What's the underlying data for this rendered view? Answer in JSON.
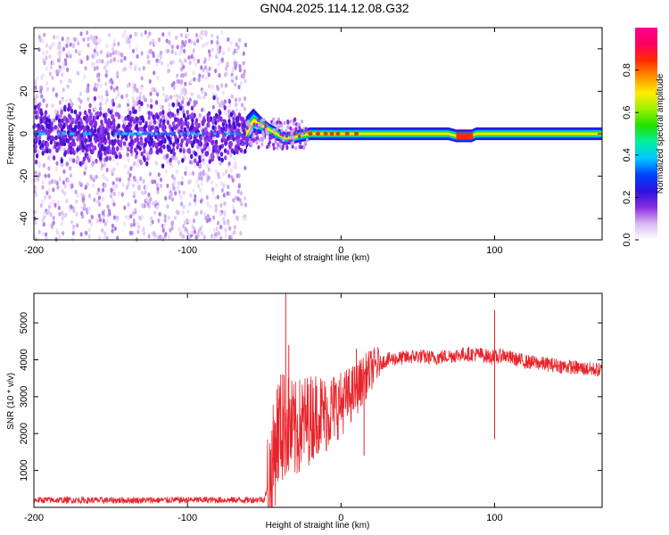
{
  "title": "GN04.2025.114.12.08.G32",
  "chart_data": [
    {
      "type": "heatmap",
      "xlabel": "Height of straight line (km)",
      "ylabel": "Frequency (Hz)",
      "xlim": [
        -200,
        170
      ],
      "ylim": [
        -50,
        50
      ],
      "x_ticks": [
        -200,
        -100,
        0,
        100
      ],
      "y_ticks": [
        -40,
        -20,
        0,
        20,
        40
      ],
      "noise_region": {
        "x_from": -200,
        "x_to": -62,
        "y_from": -50,
        "y_to": 48
      },
      "core_band": {
        "x": [
          -62,
          -57,
          -52,
          -47,
          -42,
          -37,
          -32,
          -27,
          -20,
          0,
          20,
          40,
          60,
          70,
          75,
          80,
          85,
          88,
          95,
          120,
          150,
          170
        ],
        "center": [
          0,
          6,
          4,
          2,
          0,
          -2,
          -2,
          -1,
          0,
          0,
          0,
          0,
          0,
          0,
          -1,
          -1,
          -1,
          0,
          0,
          0,
          0,
          0
        ],
        "half_width": [
          8,
          6,
          4,
          3,
          3,
          3,
          3,
          3,
          3,
          3,
          3,
          3,
          3,
          3,
          3,
          3,
          3,
          3,
          3,
          3,
          3,
          3
        ]
      },
      "colorbar": {
        "label": "Normalized spectral amplitude",
        "ticks": [
          "0.0",
          "0.2",
          "0.4",
          "0.6",
          "0.8"
        ],
        "tick_values": [
          0.0,
          0.2,
          0.4,
          0.6,
          0.8
        ],
        "range": [
          0,
          1
        ],
        "colors": [
          "#ffffff",
          "#d9b8f5",
          "#8a2be2",
          "#2a12e0",
          "#0044ff",
          "#00c8ff",
          "#00f0a0",
          "#22e000",
          "#9cf000",
          "#ffee00",
          "#ff9000",
          "#ff2a00",
          "#ff0060",
          "#ff0090"
        ]
      }
    },
    {
      "type": "line",
      "xlabel": "Height of straight line (km)",
      "ylabel": "SNR (10 * v/v)",
      "xlim": [
        -200,
        170
      ],
      "ylim": [
        0,
        5800
      ],
      "x_ticks": [
        -200,
        -100,
        0,
        100
      ],
      "y_ticks": [
        1000,
        2000,
        3000,
        4000,
        5000
      ],
      "color": "#e8232a",
      "series": [
        {
          "x": [
            -200,
            -150,
            -100,
            -60,
            -50,
            -45,
            -42,
            -40,
            -38,
            -36,
            -35,
            -30,
            -25,
            -20,
            -15,
            -10,
            -5,
            0,
            5,
            10,
            15,
            20,
            25,
            30,
            40,
            50,
            60,
            70,
            80,
            90,
            95,
            98,
            99,
            100,
            101,
            102,
            105,
            110,
            120,
            130,
            140,
            150,
            160,
            170
          ],
          "y": [
            200,
            190,
            200,
            200,
            220,
            900,
            1900,
            2200,
            2100,
            2300,
            2200,
            2000,
            2300,
            2400,
            2600,
            2500,
            2700,
            2800,
            3000,
            3200,
            3500,
            3750,
            3900,
            4000,
            4050,
            4100,
            4050,
            4100,
            4150,
            4150,
            4100,
            4050,
            4200,
            4000,
            4100,
            4050,
            4150,
            4050,
            3950,
            3900,
            3850,
            3800,
            3750,
            3720
          ],
          "spikes": [
            {
              "x": -36,
              "y": 5800
            },
            {
              "x": -38,
              "y": 3600
            },
            {
              "x": -34,
              "y": 4400
            },
            {
              "x": 100,
              "y": 5350
            },
            {
              "x": 100,
              "y": 1850
            },
            {
              "x": 10,
              "y": 4300
            },
            {
              "x": 15,
              "y": 1400
            }
          ]
        }
      ]
    }
  ]
}
